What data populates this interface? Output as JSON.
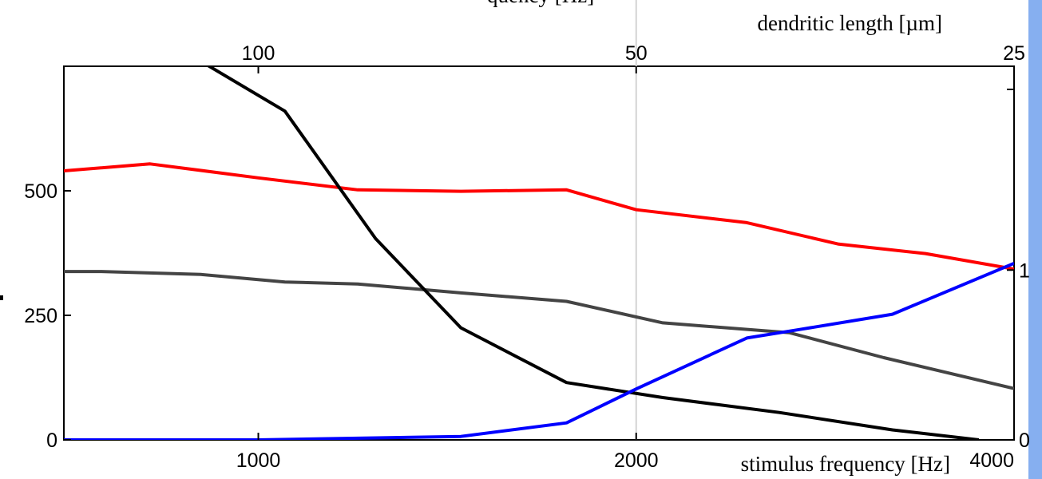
{
  "chart_data": {
    "type": "line",
    "title": "",
    "top_axis_title_partial": "quency [Hz]",
    "top_axis": {
      "label": "dendritic length [µm]",
      "ticks": [
        {
          "value": 100,
          "label": "100"
        },
        {
          "value": 50,
          "label": "50"
        },
        {
          "value": 25,
          "label": "25"
        }
      ]
    },
    "xlabel": "stimulus frequency [Hz]",
    "x_scale": "log",
    "xlim": [
      700,
      4000
    ],
    "x_ticks": [
      {
        "value": 1000,
        "label": "1000"
      },
      {
        "value": 2000,
        "label": "2000"
      },
      {
        "value": 4000,
        "label": "4000"
      }
    ],
    "ylim": [
      0,
      750
    ],
    "y_ticks": [
      {
        "value": 0,
        "label": "0"
      },
      {
        "value": 250,
        "label": "250"
      },
      {
        "value": 500,
        "label": "500"
      }
    ],
    "y2_ticks": [
      {
        "value": 0,
        "label": "0"
      },
      {
        "value": 1,
        "label": "1"
      }
    ],
    "y2_scale_max": 2.2,
    "reference_line_x": 2000,
    "grid": false,
    "series": [
      {
        "color": "#ff0000",
        "axis": "left",
        "x": [
          700,
          820,
          1000,
          1200,
          1450,
          1760,
          2000,
          2450,
          2900,
          3400,
          4000
        ],
        "y": [
          540,
          554,
          526,
          502,
          499,
          502,
          462,
          436,
          393,
          374,
          343
        ]
      },
      {
        "color": "#444444",
        "axis": "left",
        "x": [
          700,
          750,
          900,
          1050,
          1200,
          1450,
          1760,
          2100,
          2650,
          3150,
          4000
        ],
        "y": [
          338,
          338,
          332,
          317,
          313,
          295,
          278,
          235,
          215,
          165,
          103
        ]
      },
      {
        "color": "#000000",
        "axis": "left",
        "x": [
          900,
          1050,
          1240,
          1450,
          1760,
          2100,
          2600,
          3200,
          3750
        ],
        "y": [
          760,
          660,
          404,
          225,
          115,
          85,
          55,
          20,
          0
        ]
      },
      {
        "color": "#0000ff",
        "axis": "right",
        "x": [
          700,
          1000,
          1450,
          1760,
          2000,
          2450,
          2700,
          3200,
          4000
        ],
        "y": [
          0,
          0,
          0.02,
          0.1,
          0.3,
          0.6,
          0.65,
          0.74,
          1.04
        ]
      }
    ]
  }
}
